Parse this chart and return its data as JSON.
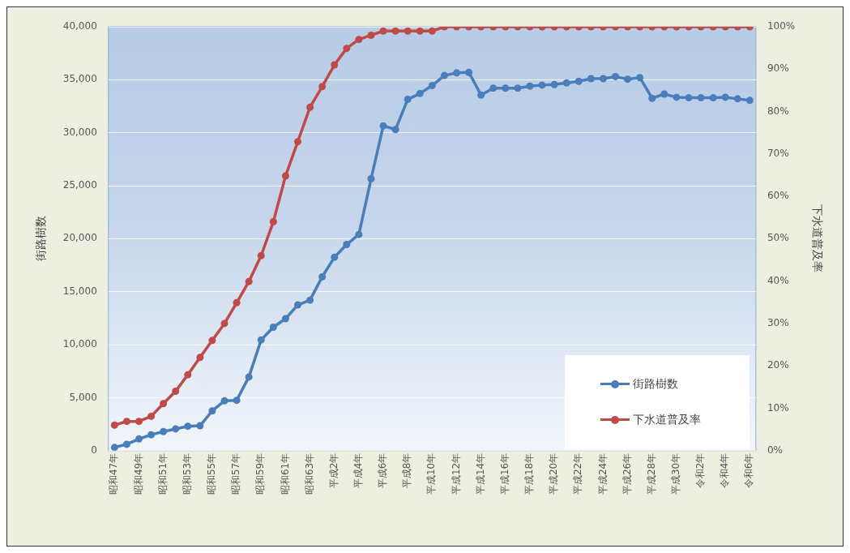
{
  "chart_data": {
    "type": "line",
    "categories": [
      "昭和47年",
      null,
      "昭和49年",
      null,
      "昭和51年",
      null,
      "昭和53年",
      null,
      "昭和55年",
      null,
      "昭和57年",
      null,
      "昭和59年",
      null,
      "昭和61年",
      null,
      "昭和63年",
      null,
      "平成2年",
      null,
      "平成4年",
      null,
      "平成6年",
      null,
      "平成8年",
      null,
      "平成10年",
      null,
      "平成12年",
      null,
      "平成14年",
      null,
      "平成16年",
      null,
      "平成18年",
      null,
      "平成20年",
      null,
      "平成22年",
      null,
      "平成24年",
      null,
      "平成26年",
      null,
      "平成28年",
      null,
      "平成30年",
      null,
      "令和2年",
      null,
      "令和4年",
      null,
      "令和6年"
    ],
    "series": [
      {
        "name": "街路樹数",
        "color": "#4a7ebb",
        "values": [
          300,
          600,
          1100,
          1500,
          1800,
          2050,
          2300,
          2350,
          3750,
          4700,
          4750,
          6950,
          10450,
          11650,
          12450,
          13750,
          14200,
          16400,
          18250,
          19450,
          20400,
          25650,
          30650,
          30300,
          33150,
          33700,
          34450,
          35400,
          35650,
          35700,
          33550,
          34200,
          34200,
          34200,
          34400,
          34500,
          34550,
          34700,
          34850,
          35100,
          35100,
          35300,
          35050,
          35200,
          33250,
          33650,
          33350,
          33300,
          33300,
          33300,
          33350,
          33200,
          33050
        ]
      },
      {
        "name": "下水道普及率",
        "color": "#be4b48",
        "axis": "y2",
        "values": [
          6,
          6.9,
          6.9,
          8.1,
          11.1,
          14,
          17.9,
          22,
          26,
          30,
          34.9,
          39.9,
          46,
          54,
          64.8,
          72.9,
          81,
          85.9,
          91,
          94.9,
          97,
          98,
          99,
          99,
          99,
          99,
          99,
          100,
          100,
          100,
          100,
          100,
          100,
          100,
          100,
          100,
          100,
          100,
          100,
          100,
          100,
          100,
          100,
          100,
          100,
          100,
          100,
          100,
          100,
          100,
          100,
          100,
          100
        ]
      }
    ],
    "ylabel": "街路樹数",
    "y2label": "下水道普及率",
    "ylim": [
      0,
      40000
    ],
    "yticks": [
      {
        "value": 0,
        "label": "0"
      },
      {
        "value": 5000,
        "label": "5,000"
      },
      {
        "value": 10000,
        "label": "10,000"
      },
      {
        "value": 15000,
        "label": "15,000"
      },
      {
        "value": 20000,
        "label": "20,000"
      },
      {
        "value": 25000,
        "label": "25,000"
      },
      {
        "value": 30000,
        "label": "30,000"
      },
      {
        "value": 35000,
        "label": "35,000"
      },
      {
        "value": 40000,
        "label": "40,000"
      }
    ],
    "y2lim": [
      0,
      100
    ],
    "y2ticks": [
      {
        "value": 0,
        "label": "0%"
      },
      {
        "value": 10,
        "label": "10%"
      },
      {
        "value": 20,
        "label": "20%"
      },
      {
        "value": 30,
        "label": "30%"
      },
      {
        "value": 40,
        "label": "40%"
      },
      {
        "value": 50,
        "label": "50%"
      },
      {
        "value": 60,
        "label": "60%"
      },
      {
        "value": 70,
        "label": "70%"
      },
      {
        "value": 80,
        "label": "80%"
      },
      {
        "value": 90,
        "label": "90%"
      },
      {
        "value": 100,
        "label": "100%"
      }
    ],
    "grid": "y",
    "legend": "bottom right",
    "marker": "circle",
    "line_style": "solid"
  }
}
